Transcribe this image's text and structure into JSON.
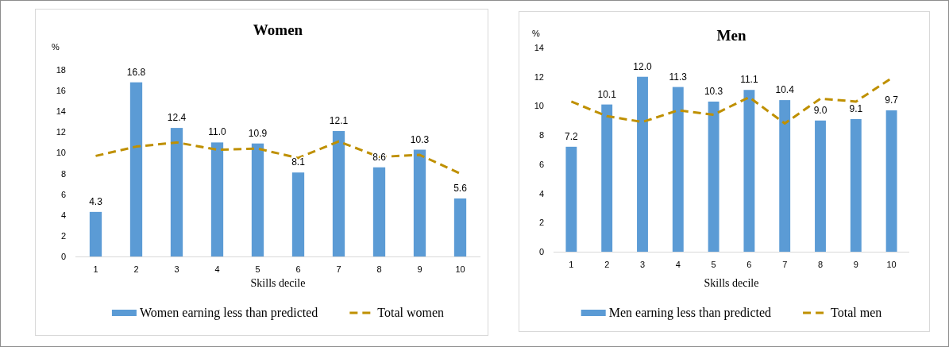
{
  "chart_data": [
    {
      "type": "bar",
      "title": "Women",
      "ylabel": "%",
      "xlabel": "Skills decile",
      "categories": [
        "1",
        "2",
        "3",
        "4",
        "5",
        "6",
        "7",
        "8",
        "9",
        "10"
      ],
      "ylim": [
        0,
        18
      ],
      "yticks": [
        0,
        2,
        4,
        6,
        8,
        10,
        12,
        14,
        16,
        18
      ],
      "legend": "bottom",
      "series": [
        {
          "name": "Women earning less than predicted",
          "color": "#5b9bd5",
          "values": [
            4.3,
            16.8,
            12.4,
            11.0,
            10.9,
            8.1,
            12.1,
            8.6,
            10.3,
            5.6
          ],
          "value_labels": [
            "4.3",
            "16.8",
            "12.4",
            "11.0",
            "10.9",
            "8.1",
            "12.1",
            "8.6",
            "10.3",
            "5.6"
          ]
        },
        {
          "name": "Total women",
          "type": "line",
          "color": "#bf9000",
          "line_style": "dashed",
          "values": [
            9.7,
            10.6,
            11.0,
            10.3,
            10.4,
            9.5,
            11.1,
            9.6,
            9.8,
            8.0
          ]
        }
      ]
    },
    {
      "type": "bar",
      "title": "Men",
      "ylabel": "%",
      "xlabel": "Skills decile",
      "categories": [
        "1",
        "2",
        "3",
        "4",
        "5",
        "6",
        "7",
        "8",
        "9",
        "10"
      ],
      "ylim": [
        0,
        14
      ],
      "yticks": [
        0,
        2,
        4,
        6,
        8,
        10,
        12,
        14
      ],
      "legend": "bottom",
      "series": [
        {
          "name": "Men earning less than predicted",
          "color": "#5b9bd5",
          "values": [
            7.2,
            10.1,
            12.0,
            11.3,
            10.3,
            11.1,
            10.4,
            9.0,
            9.1,
            9.7
          ],
          "value_labels": [
            "7.2",
            "10.1",
            "12.0",
            "11.3",
            "10.3",
            "11.1",
            "10.4",
            "9.0",
            "9.1",
            "9.7"
          ]
        },
        {
          "name": "Total men",
          "type": "line",
          "color": "#bf9000",
          "line_style": "dashed",
          "values": [
            10.3,
            9.3,
            8.9,
            9.7,
            9.4,
            10.6,
            8.8,
            10.5,
            10.3,
            11.9
          ]
        }
      ]
    }
  ]
}
